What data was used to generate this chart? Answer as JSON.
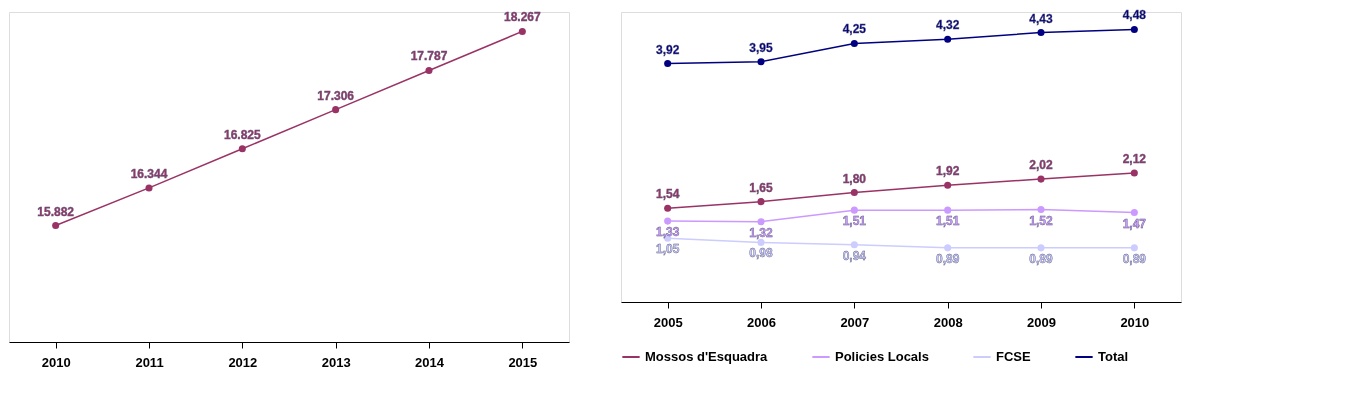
{
  "chart_data": [
    {
      "type": "line",
      "categories": [
        "2010",
        "2011",
        "2012",
        "2013",
        "2014",
        "2015"
      ],
      "series": [
        {
          "color": "#993366",
          "values": [
            15882,
            16344,
            16825,
            17306,
            17787,
            18267
          ],
          "value_labels": [
            "15.882",
            "16.344",
            "16.825",
            "17.306",
            "17.787",
            "18.267"
          ]
        }
      ],
      "marker": "circle",
      "grid": false,
      "legend": false,
      "tick_labels": "x"
    },
    {
      "type": "line",
      "categories": [
        "2005",
        "2006",
        "2007",
        "2008",
        "2009",
        "2010"
      ],
      "series": [
        {
          "name": "Mossos d'Esquadra",
          "color": "#993366",
          "values": [
            1.54,
            1.65,
            1.8,
            1.92,
            2.02,
            2.12
          ],
          "value_labels": [
            "1,54",
            "1,65",
            "1,80",
            "1,92",
            "2,02",
            "2,12"
          ]
        },
        {
          "name": "Policies Locals",
          "color": "#cc99ff",
          "values": [
            1.33,
            1.32,
            1.51,
            1.51,
            1.52,
            1.47
          ],
          "value_labels": [
            "1,33",
            "1,32",
            "1,51",
            "1,51",
            "1,52",
            "1,47"
          ]
        },
        {
          "name": "FCSE",
          "color": "#ccccff",
          "values": [
            1.05,
            0.98,
            0.94,
            0.89,
            0.89,
            0.89
          ],
          "value_labels": [
            "1,05",
            "0,98",
            "0,94",
            "0,89",
            "0,89",
            "0,89"
          ]
        },
        {
          "name": "Total",
          "color": "#000080",
          "values": [
            3.92,
            3.95,
            4.25,
            4.32,
            4.43,
            4.48
          ],
          "value_labels": [
            "3,92",
            "3,95",
            "4,25",
            "4,32",
            "4,43",
            "4,48"
          ]
        }
      ],
      "marker": "circle",
      "grid": false,
      "legend": "bottom",
      "tick_labels": "x"
    }
  ]
}
